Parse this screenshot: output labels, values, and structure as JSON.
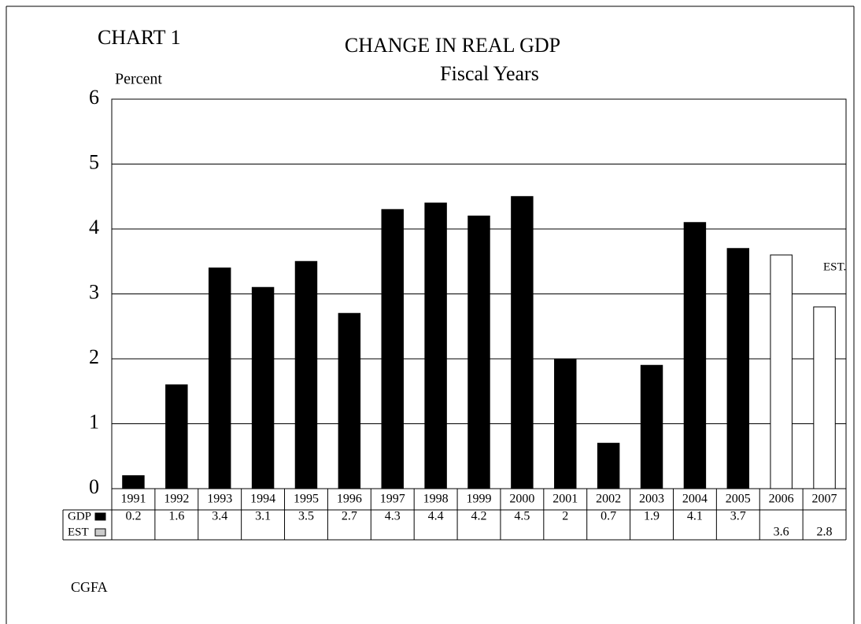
{
  "chart_data": {
    "type": "bar",
    "label": "CHART 1",
    "title": "CHANGE IN REAL GDP",
    "subtitle": "Fiscal Years",
    "y_label": "Percent",
    "annotation": "EST.",
    "source": "CGFA",
    "categories": [
      "1991",
      "1992",
      "1993",
      "1994",
      "1995",
      "1996",
      "1997",
      "1998",
      "1999",
      "2000",
      "2001",
      "2002",
      "2003",
      "2004",
      "2005",
      "2006",
      "2007"
    ],
    "series": [
      {
        "name": "GDP",
        "color": "#000000",
        "values": [
          0.2,
          1.6,
          3.4,
          3.1,
          3.5,
          2.7,
          4.3,
          4.4,
          4.2,
          4.5,
          2,
          0.7,
          1.9,
          4.1,
          3.7,
          null,
          null
        ]
      },
      {
        "name": "EST",
        "color": "#ffffff",
        "values": [
          null,
          null,
          null,
          null,
          null,
          null,
          null,
          null,
          null,
          null,
          null,
          null,
          null,
          null,
          null,
          3.6,
          2.8
        ]
      }
    ],
    "ylim": [
      0,
      6
    ],
    "yticks": [
      0,
      1,
      2,
      3,
      4,
      5,
      6
    ],
    "grid": true
  }
}
